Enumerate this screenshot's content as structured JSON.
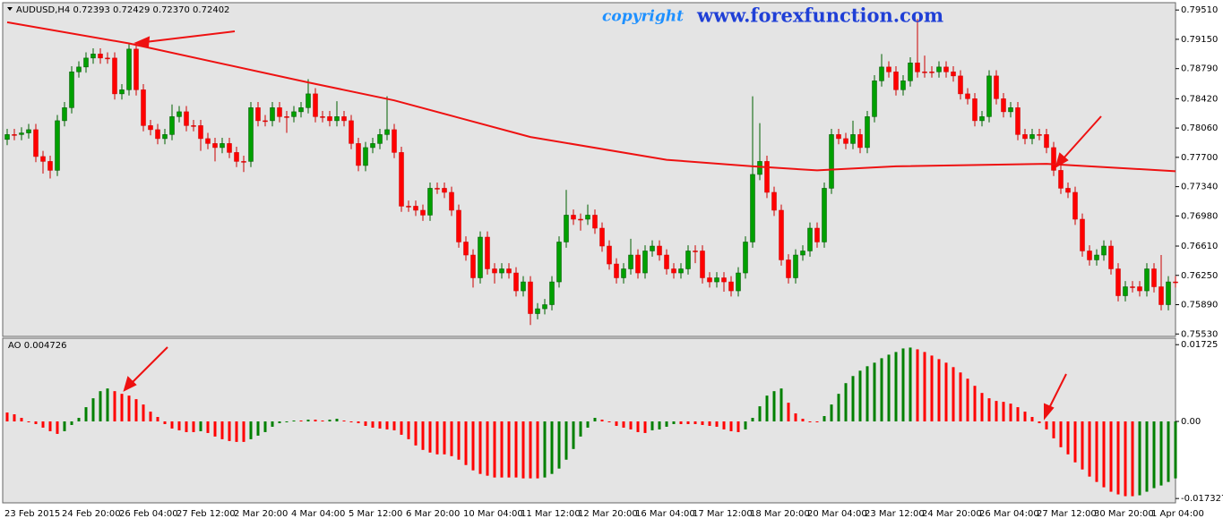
{
  "chart_data": [
    {
      "type": "candlestick",
      "title": "AUDUSD,H4  0.72393 0.72429 0.72370 0.72402",
      "annotations": [
        "copyright",
        "www.forexfunction.com"
      ],
      "up_color": "#00a000",
      "down_color": "#ff0000",
      "ylim": [
        0.755,
        0.796
      ],
      "yticks": [
        {
          "value": 0.7951,
          "label": "0.79510"
        },
        {
          "value": 0.7915,
          "label": "0.79150"
        },
        {
          "value": 0.7879,
          "label": "0.78790"
        },
        {
          "value": 0.7842,
          "label": "0.78420"
        },
        {
          "value": 0.7806,
          "label": "0.78060"
        },
        {
          "value": 0.777,
          "label": "0.77700"
        },
        {
          "value": 0.7734,
          "label": "0.77340"
        },
        {
          "value": 0.7698,
          "label": "0.76980"
        },
        {
          "value": 0.7661,
          "label": "0.76610"
        },
        {
          "value": 0.7625,
          "label": "0.76250"
        },
        {
          "value": 0.7589,
          "label": "0.75890"
        },
        {
          "value": 0.7553,
          "label": "0.75530"
        }
      ],
      "x_labels": [
        "23 Feb 2015",
        "24 Feb 20:00",
        "26 Feb 04:00",
        "27 Feb 12:00",
        "2 Mar 20:00",
        "4 Mar 04:00",
        "5 Mar 12:00",
        "6 Mar 20:00",
        "10 Mar 04:00",
        "11 Mar 12:00",
        "12 Mar 20:00",
        "16 Mar 04:00",
        "17 Mar 12:00",
        "18 Mar 20:00",
        "20 Mar 04:00",
        "23 Mar 12:00",
        "24 Mar 20:00",
        "26 Mar 04:00",
        "27 Mar 12:00",
        "30 Mar 20:00",
        "1 Apr 04:00"
      ],
      "open": [
        0.7792,
        0.7798,
        0.7798,
        0.78,
        0.7804,
        0.7771,
        0.7765,
        0.7754,
        0.7815,
        0.7831,
        0.7875,
        0.7881,
        0.7892,
        0.7897,
        0.7892,
        0.7892,
        0.7848,
        0.7853,
        0.7903,
        0.7853,
        0.7809,
        0.7804,
        0.7793,
        0.7798,
        0.782,
        0.7826,
        0.7809,
        0.7809,
        0.7793,
        0.7787,
        0.7782,
        0.7787,
        0.7776,
        0.7765,
        0.7765,
        0.7831,
        0.7815,
        0.7815,
        0.7831,
        0.782,
        0.782,
        0.7826,
        0.7831,
        0.7848,
        0.782,
        0.782,
        0.7815,
        0.782,
        0.7815,
        0.7787,
        0.776,
        0.7782,
        0.7787,
        0.7798,
        0.7804,
        0.7776,
        0.771,
        0.771,
        0.7705,
        0.7699,
        0.7732,
        0.7732,
        0.7727,
        0.7705,
        0.7666,
        0.765,
        0.7622,
        0.7672,
        0.7633,
        0.7628,
        0.7633,
        0.7628,
        0.7606,
        0.7617,
        0.7578,
        0.7584,
        0.7589,
        0.7617,
        0.7666,
        0.7699,
        0.7694,
        0.7694,
        0.7699,
        0.7683,
        0.7661,
        0.7639,
        0.7622,
        0.7633,
        0.765,
        0.7628,
        0.7655,
        0.7661,
        0.765,
        0.7633,
        0.7628,
        0.7633,
        0.7655,
        0.7655,
        0.7622,
        0.7617,
        0.7622,
        0.7617,
        0.7606,
        0.7628,
        0.7666,
        0.7749,
        0.7765,
        0.7727,
        0.7705,
        0.7644,
        0.7622,
        0.765,
        0.7655,
        0.7683,
        0.7666,
        0.7732,
        0.7798,
        0.7793,
        0.7787,
        0.7798,
        0.7782,
        0.782,
        0.7864,
        0.7881,
        0.7875,
        0.7853,
        0.7864,
        0.7886,
        0.7875,
        0.7875,
        0.7875,
        0.7881,
        0.7875,
        0.787,
        0.7848,
        0.7842,
        0.7815,
        0.782,
        0.787,
        0.7842,
        0.7826,
        0.7831,
        0.7798,
        0.7793,
        0.7798,
        0.7798,
        0.7782,
        0.7754,
        0.7732,
        0.7727,
        0.7694,
        0.7655,
        0.7644,
        0.765,
        0.7661,
        0.7633,
        0.76,
        0.7611,
        0.7611,
        0.7606,
        0.7633,
        0.7611,
        0.7589,
        0.7617
      ],
      "high": [
        0.7805,
        0.7805,
        0.7807,
        0.7811,
        0.7811,
        0.7778,
        0.7772,
        0.7822,
        0.7838,
        0.7882,
        0.7888,
        0.7899,
        0.7904,
        0.7904,
        0.7899,
        0.7899,
        0.786,
        0.791,
        0.791,
        0.786,
        0.7816,
        0.7811,
        0.7805,
        0.7835,
        0.7833,
        0.7833,
        0.7816,
        0.7816,
        0.78,
        0.7794,
        0.7794,
        0.7794,
        0.7783,
        0.7772,
        0.7838,
        0.7838,
        0.7822,
        0.7838,
        0.7838,
        0.7827,
        0.7833,
        0.7838,
        0.7866,
        0.7855,
        0.7827,
        0.7827,
        0.7839,
        0.7827,
        0.7822,
        0.7794,
        0.7789,
        0.7794,
        0.7805,
        0.7845,
        0.7811,
        0.7783,
        0.7717,
        0.7717,
        0.7712,
        0.7739,
        0.7739,
        0.7739,
        0.7734,
        0.7712,
        0.7673,
        0.7657,
        0.7679,
        0.7679,
        0.764,
        0.764,
        0.764,
        0.7635,
        0.7624,
        0.7624,
        0.7591,
        0.7596,
        0.7624,
        0.7673,
        0.773,
        0.7706,
        0.7701,
        0.7712,
        0.7706,
        0.769,
        0.7668,
        0.7646,
        0.764,
        0.767,
        0.7657,
        0.7662,
        0.7668,
        0.7668,
        0.7657,
        0.764,
        0.764,
        0.7662,
        0.7662,
        0.7662,
        0.7629,
        0.7629,
        0.7629,
        0.7624,
        0.7635,
        0.7673,
        0.7845,
        0.7812,
        0.7772,
        0.7734,
        0.7712,
        0.7651,
        0.7657,
        0.7662,
        0.769,
        0.769,
        0.7739,
        0.7805,
        0.7805,
        0.78,
        0.7815,
        0.7805,
        0.7827,
        0.7871,
        0.7897,
        0.7888,
        0.7882,
        0.7871,
        0.7893,
        0.794,
        0.7895,
        0.7882,
        0.7888,
        0.7888,
        0.7882,
        0.7877,
        0.7855,
        0.7849,
        0.7827,
        0.7877,
        0.7877,
        0.7849,
        0.7838,
        0.7838,
        0.7805,
        0.7805,
        0.7805,
        0.7805,
        0.7789,
        0.7761,
        0.7739,
        0.7734,
        0.7701,
        0.7662,
        0.7657,
        0.7668,
        0.7668,
        0.764,
        0.7618,
        0.7618,
        0.7618,
        0.764,
        0.764,
        0.765,
        0.7624,
        0.7624
      ],
      "low": [
        0.7785,
        0.7791,
        0.7791,
        0.7793,
        0.7764,
        0.775,
        0.7744,
        0.7747,
        0.7808,
        0.7824,
        0.7868,
        0.7874,
        0.7885,
        0.7885,
        0.7885,
        0.7841,
        0.7841,
        0.7846,
        0.7846,
        0.7802,
        0.7797,
        0.7786,
        0.7786,
        0.7791,
        0.7813,
        0.7802,
        0.7802,
        0.7778,
        0.778,
        0.7765,
        0.7775,
        0.7769,
        0.7758,
        0.7752,
        0.7758,
        0.7808,
        0.7808,
        0.7808,
        0.7813,
        0.78,
        0.7813,
        0.7819,
        0.7824,
        0.7813,
        0.7813,
        0.7808,
        0.7808,
        0.7808,
        0.778,
        0.7753,
        0.7753,
        0.7775,
        0.778,
        0.7791,
        0.7769,
        0.7703,
        0.7703,
        0.7698,
        0.7692,
        0.7692,
        0.7725,
        0.772,
        0.7698,
        0.7659,
        0.7643,
        0.761,
        0.7615,
        0.7626,
        0.7615,
        0.7621,
        0.7621,
        0.7599,
        0.7599,
        0.7564,
        0.7571,
        0.7577,
        0.7582,
        0.761,
        0.7659,
        0.7687,
        0.768,
        0.7687,
        0.7676,
        0.7654,
        0.7632,
        0.7615,
        0.7615,
        0.7626,
        0.7621,
        0.7621,
        0.7648,
        0.7643,
        0.7626,
        0.7621,
        0.7621,
        0.7626,
        0.764,
        0.7615,
        0.761,
        0.761,
        0.7605,
        0.7599,
        0.7599,
        0.7621,
        0.7659,
        0.7742,
        0.772,
        0.7698,
        0.7637,
        0.7615,
        0.7615,
        0.7643,
        0.7648,
        0.7659,
        0.7659,
        0.7725,
        0.7786,
        0.778,
        0.778,
        0.7775,
        0.7775,
        0.7813,
        0.7857,
        0.7868,
        0.7846,
        0.7846,
        0.7857,
        0.7868,
        0.7868,
        0.7868,
        0.7868,
        0.7868,
        0.7863,
        0.7841,
        0.7835,
        0.7808,
        0.7808,
        0.7813,
        0.7835,
        0.7819,
        0.7819,
        0.7791,
        0.7786,
        0.7786,
        0.7791,
        0.7775,
        0.7747,
        0.7725,
        0.772,
        0.7687,
        0.7648,
        0.7637,
        0.7637,
        0.7643,
        0.7626,
        0.7593,
        0.7593,
        0.7604,
        0.7599,
        0.7599,
        0.7604,
        0.7582,
        0.7582,
        0.761
      ],
      "close": [
        0.7798,
        0.7798,
        0.78,
        0.7804,
        0.7771,
        0.7765,
        0.7754,
        0.7815,
        0.7831,
        0.7875,
        0.7881,
        0.7892,
        0.7897,
        0.7892,
        0.7892,
        0.7848,
        0.7853,
        0.7903,
        0.7853,
        0.7809,
        0.7804,
        0.7793,
        0.7798,
        0.782,
        0.7826,
        0.7809,
        0.7809,
        0.7793,
        0.7787,
        0.7782,
        0.7787,
        0.7776,
        0.7765,
        0.7765,
        0.7831,
        0.7815,
        0.7815,
        0.7831,
        0.782,
        0.782,
        0.7826,
        0.7831,
        0.7848,
        0.782,
        0.782,
        0.7815,
        0.782,
        0.7815,
        0.7787,
        0.776,
        0.7782,
        0.7787,
        0.7798,
        0.7804,
        0.7776,
        0.771,
        0.771,
        0.7705,
        0.7699,
        0.7732,
        0.7732,
        0.7727,
        0.7705,
        0.7666,
        0.765,
        0.7622,
        0.7672,
        0.7633,
        0.7628,
        0.7633,
        0.7628,
        0.7606,
        0.7617,
        0.7578,
        0.7584,
        0.7589,
        0.7617,
        0.7666,
        0.7699,
        0.7694,
        0.7694,
        0.7699,
        0.7683,
        0.7661,
        0.7639,
        0.7622,
        0.7633,
        0.765,
        0.7628,
        0.7655,
        0.7661,
        0.765,
        0.7633,
        0.7628,
        0.7633,
        0.7655,
        0.7655,
        0.7622,
        0.7617,
        0.7622,
        0.7617,
        0.7606,
        0.7628,
        0.7666,
        0.7749,
        0.7765,
        0.7727,
        0.7705,
        0.7644,
        0.7622,
        0.765,
        0.7655,
        0.7683,
        0.7666,
        0.7732,
        0.7798,
        0.7793,
        0.7787,
        0.7798,
        0.7782,
        0.782,
        0.7864,
        0.7881,
        0.7875,
        0.7853,
        0.7864,
        0.7886,
        0.7875,
        0.7875,
        0.7875,
        0.7881,
        0.7875,
        0.787,
        0.7848,
        0.7842,
        0.7815,
        0.782,
        0.787,
        0.7842,
        0.7826,
        0.7831,
        0.7798,
        0.7793,
        0.7798,
        0.7798,
        0.7782,
        0.7754,
        0.7732,
        0.7727,
        0.7694,
        0.7655,
        0.7644,
        0.765,
        0.7661,
        0.7633,
        0.76,
        0.7611,
        0.7611,
        0.7606,
        0.7633,
        0.7611,
        0.7589,
        0.7617,
        0.7617
      ],
      "series": [
        {
          "type": "line",
          "color": "#ee1111",
          "x": [
            1,
            18,
            43,
            55,
            74,
            93,
            105,
            114,
            125,
            146,
            164
          ],
          "values": [
            0.7936,
            0.791,
            0.7862,
            0.784,
            0.7795,
            0.7767,
            0.7759,
            0.7754,
            0.7759,
            0.7762,
            0.7753
          ]
        }
      ]
    },
    {
      "type": "histogram",
      "title": "AO 0.004726",
      "up_color": "#008000",
      "down_color": "#ff0000",
      "ylim": [
        -0.0183,
        0.0187
      ],
      "yticks": [
        0.01725,
        {
          "value": 0,
          "label": "0.00"
        },
        -0.017327
      ],
      "values": [
        0.002,
        0.0016,
        0.0008,
        -0.0002,
        -0.0006,
        -0.0014,
        -0.0022,
        -0.0028,
        -0.0022,
        -0.0008,
        0.0008,
        0.0032,
        0.0052,
        0.0068,
        0.0074,
        0.0068,
        0.0062,
        0.0058,
        0.005,
        0.0038,
        0.0022,
        0.001,
        -0.0006,
        -0.0016,
        -0.002,
        -0.0024,
        -0.0024,
        -0.0022,
        -0.0026,
        -0.0034,
        -0.004,
        -0.0044,
        -0.0046,
        -0.0046,
        -0.004,
        -0.0032,
        -0.0024,
        -0.0012,
        -0.0004,
        -0.0001,
        0.0002,
        0.0002,
        0.0004,
        0.0004,
        0.0002,
        0.0004,
        0.0006,
        0.0002,
        -0.0002,
        -0.0004,
        -0.001,
        -0.0014,
        -0.0016,
        -0.0018,
        -0.002,
        -0.003,
        -0.004,
        -0.0054,
        -0.0064,
        -0.007,
        -0.0074,
        -0.0074,
        -0.0078,
        -0.0086,
        -0.0098,
        -0.011,
        -0.0118,
        -0.0122,
        -0.0126,
        -0.0126,
        -0.0126,
        -0.0126,
        -0.0128,
        -0.0128,
        -0.0128,
        -0.0126,
        -0.0118,
        -0.0106,
        -0.0086,
        -0.0062,
        -0.0034,
        -0.0014,
        0.0008,
        0.0004,
        -0.0002,
        -0.001,
        -0.0014,
        -0.0018,
        -0.0024,
        -0.0026,
        -0.002,
        -0.0018,
        -0.0012,
        -0.0006,
        -0.0006,
        -0.0006,
        -0.0006,
        -0.0008,
        -0.001,
        -0.0012,
        -0.0018,
        -0.0022,
        -0.0024,
        -0.0018,
        0.0008,
        0.0034,
        0.0058,
        0.0068,
        0.0074,
        0.0042,
        0.0018,
        0.0006,
        -0.0001,
        -0.0001,
        0.0012,
        0.0038,
        0.0062,
        0.0086,
        0.0102,
        0.0114,
        0.0124,
        0.0132,
        0.0142,
        0.015,
        0.0156,
        0.0164,
        0.0166,
        0.0162,
        0.0156,
        0.0148,
        0.014,
        0.0132,
        0.0122,
        0.011,
        0.0096,
        0.008,
        0.0064,
        0.0052,
        0.0046,
        0.0044,
        0.004,
        0.0032,
        0.0022,
        0.001,
        -0.0004,
        -0.0018,
        -0.0038,
        -0.0058,
        -0.0074,
        -0.0092,
        -0.0108,
        -0.0124,
        -0.0136,
        -0.0148,
        -0.0158,
        -0.0164,
        -0.0168,
        -0.0168,
        -0.0166,
        -0.0158,
        -0.015,
        -0.0144,
        -0.0136,
        -0.0128
      ]
    }
  ]
}
